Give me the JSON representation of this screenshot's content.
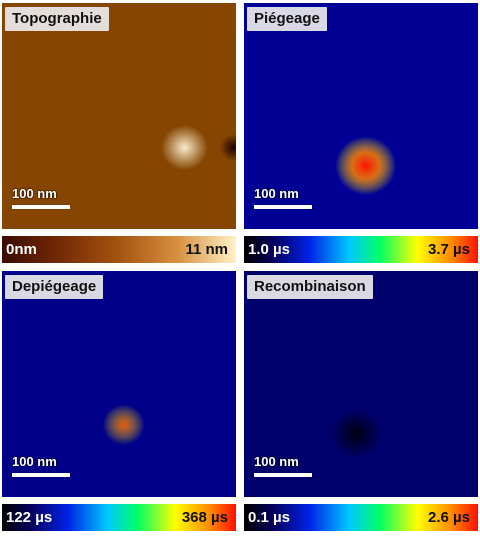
{
  "panels": [
    {
      "label": "Topographie",
      "scale_bar": "100 nm",
      "colorbar": {
        "min": "0nm",
        "max": "11 nm"
      },
      "palette": "copper"
    },
    {
      "label": "Piégeage",
      "scale_bar": "100 nm",
      "colorbar": {
        "min": "1.0 µs",
        "max": "3.7 µs"
      },
      "palette": "spectral"
    },
    {
      "label": "Depiégeage",
      "scale_bar": "100 nm",
      "colorbar": {
        "min": "122 µs",
        "max": "368 µs"
      },
      "palette": "spectral"
    },
    {
      "label": "Recombinaison",
      "scale_bar": "100 nm",
      "colorbar": {
        "min": "0.1 µs",
        "max": "2.6 µs"
      },
      "palette": "spectral"
    }
  ],
  "colors": {
    "copper_dark": "#3a0c00",
    "copper_mid": "#a4540f",
    "copper_light": "#fff2c8",
    "spectral_low": "#000000",
    "spectral_blue": "#0022e6",
    "spectral_green": "#00ff66",
    "spectral_yellow": "#ffff00",
    "spectral_high": "#ff1000"
  }
}
